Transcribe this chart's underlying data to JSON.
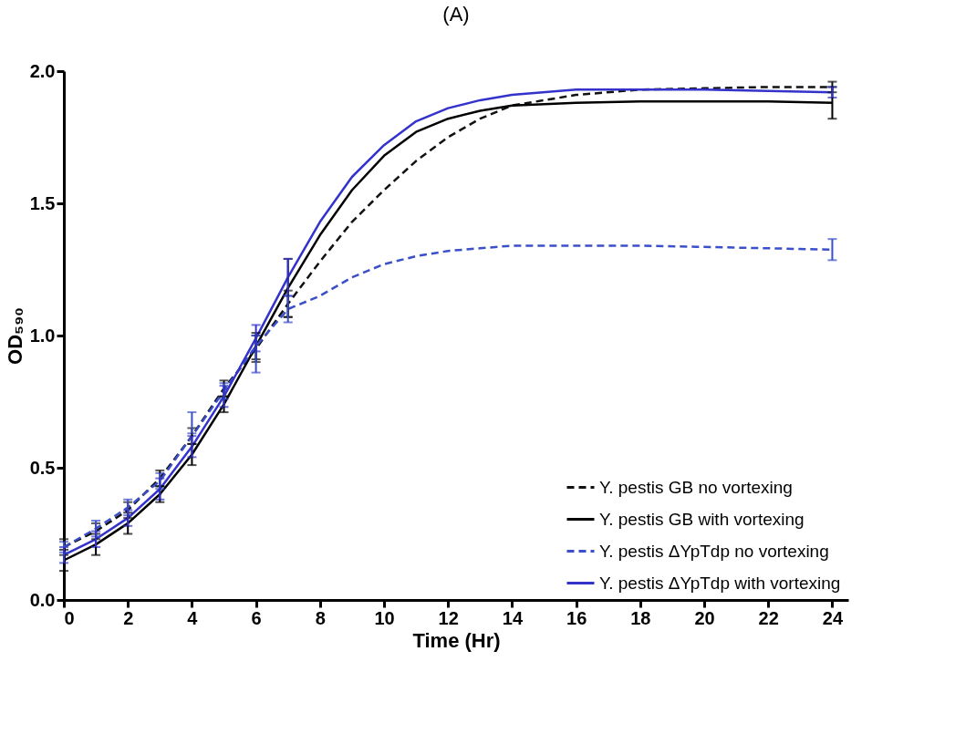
{
  "chart_data": {
    "type": "line",
    "title": "(A)",
    "xlabel": "Time (Hr)",
    "ylabel": "OD₅₉₀",
    "x": [
      0,
      1,
      2,
      3,
      4,
      5,
      6,
      7,
      8,
      9,
      10,
      11,
      12,
      13,
      14,
      16,
      18,
      20,
      22,
      24
    ],
    "xlim": [
      0,
      24.5
    ],
    "xticks": [
      0,
      2,
      4,
      6,
      8,
      10,
      12,
      14,
      16,
      18,
      20,
      22,
      24
    ],
    "ylim": [
      0,
      2
    ],
    "yticks": [
      {
        "value": 0,
        "label": "0.0"
      },
      {
        "value": 0.5,
        "label": "0.5"
      },
      {
        "value": 1,
        "label": "1.0"
      },
      {
        "value": 1.5,
        "label": "1.5"
      },
      {
        "value": 2,
        "label": "2.0"
      }
    ],
    "grid": false,
    "legend": "bottom right",
    "marker": "none",
    "series": [
      {
        "name": "Y. pestis GB no vortexing",
        "color": "#111111",
        "line_style": "dashed",
        "values": [
          0.2,
          0.26,
          0.34,
          0.46,
          0.62,
          0.8,
          0.95,
          1.12,
          1.28,
          1.43,
          1.55,
          1.66,
          1.75,
          1.82,
          1.87,
          1.91,
          1.93,
          1.935,
          1.94,
          1.94
        ],
        "errors": [
          0.03,
          0.03,
          0.03,
          0.03,
          0.03,
          0.03,
          0.05,
          0.05,
          null,
          null,
          null,
          null,
          null,
          null,
          null,
          null,
          null,
          null,
          null,
          0.02
        ]
      },
      {
        "name": "Y. pestis GB with vortexing",
        "color": "#000000",
        "line_style": "solid",
        "values": [
          0.15,
          0.21,
          0.29,
          0.4,
          0.55,
          0.74,
          0.96,
          1.18,
          1.38,
          1.55,
          1.68,
          1.77,
          1.82,
          1.85,
          1.87,
          1.88,
          1.885,
          1.885,
          1.885,
          1.88
        ],
        "errors": [
          0.04,
          0.04,
          0.04,
          0.03,
          0.04,
          0.03,
          0.05,
          0.11,
          null,
          null,
          null,
          null,
          null,
          null,
          null,
          null,
          null,
          null,
          null,
          0.06
        ]
      },
      {
        "name": "Y. pestis ΔYpTdp no vortexing",
        "color": "#3a4fc8",
        "line_style": "dashed",
        "values": [
          0.2,
          0.27,
          0.35,
          0.45,
          0.62,
          0.79,
          0.96,
          1.1,
          1.15,
          1.22,
          1.27,
          1.3,
          1.32,
          1.33,
          1.34,
          1.34,
          1.34,
          1.335,
          1.33,
          1.325
        ],
        "errors": [
          0.02,
          0.03,
          0.03,
          0.03,
          [
            0.63,
            0.71
          ],
          0.03,
          [
            0.86,
            1.0
          ],
          0.05,
          null,
          null,
          null,
          null,
          null,
          null,
          null,
          null,
          null,
          null,
          null,
          0.04
        ]
      },
      {
        "name": "Y. pestis ΔYpTdp with vortexing",
        "color": "#3333cc",
        "line_style": "solid",
        "values": [
          0.17,
          0.23,
          0.31,
          0.42,
          0.58,
          0.77,
          0.99,
          1.22,
          1.43,
          1.6,
          1.72,
          1.81,
          1.86,
          1.89,
          1.91,
          1.93,
          1.93,
          1.93,
          1.925,
          1.92
        ],
        "errors": [
          0.03,
          0.03,
          0.03,
          0.04,
          0.04,
          0.04,
          0.05,
          0.07,
          null,
          null,
          null,
          null,
          null,
          null,
          null,
          null,
          null,
          null,
          null,
          0.02
        ]
      }
    ]
  }
}
